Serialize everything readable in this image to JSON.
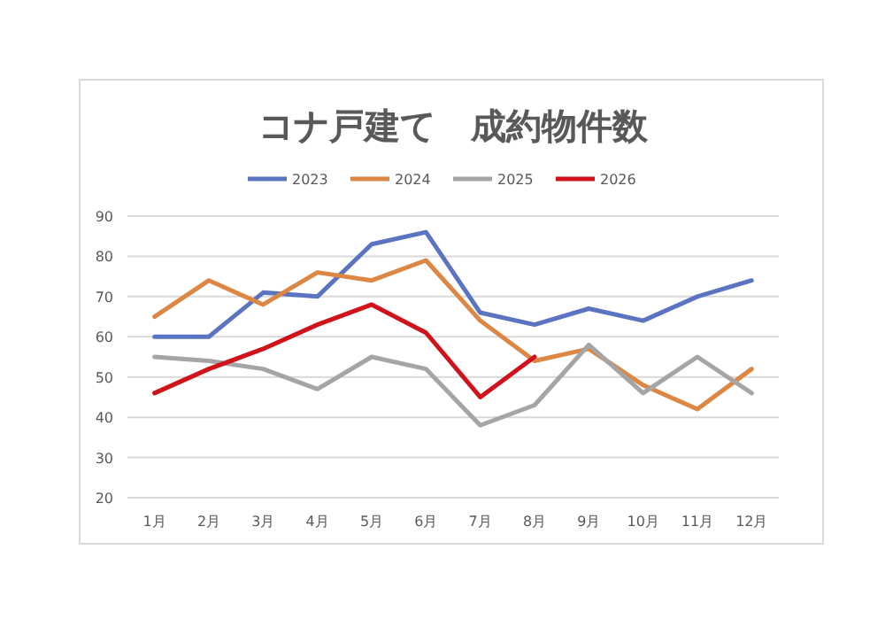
{
  "chart_data": {
    "type": "line",
    "title": "コナ戸建て　成約物件数",
    "categories": [
      "1月",
      "2月",
      "3月",
      "4月",
      "5月",
      "6月",
      "7月",
      "8月",
      "9月",
      "10月",
      "11月",
      "12月"
    ],
    "series": [
      {
        "name": "2023",
        "color": "#5b74c2",
        "values": [
          60,
          60,
          71,
          70,
          83,
          86,
          66,
          63,
          67,
          64,
          70,
          74
        ]
      },
      {
        "name": "2024",
        "color": "#dd8744",
        "values": [
          65,
          74,
          68,
          76,
          74,
          79,
          64,
          54,
          57,
          48,
          42,
          52
        ]
      },
      {
        "name": "2025",
        "color": "#a5a5a5",
        "values": [
          55,
          54,
          52,
          47,
          55,
          52,
          38,
          43,
          58,
          46,
          55,
          46
        ]
      },
      {
        "name": "2026",
        "color": "#d0131b",
        "values": [
          46,
          52,
          57,
          63,
          68,
          61,
          45,
          55,
          null,
          null,
          null,
          null
        ]
      }
    ],
    "ylim": [
      20,
      90
    ],
    "yticks": [
      20,
      30,
      40,
      50,
      60,
      70,
      80,
      90
    ],
    "grid": "y",
    "legend": "top"
  }
}
